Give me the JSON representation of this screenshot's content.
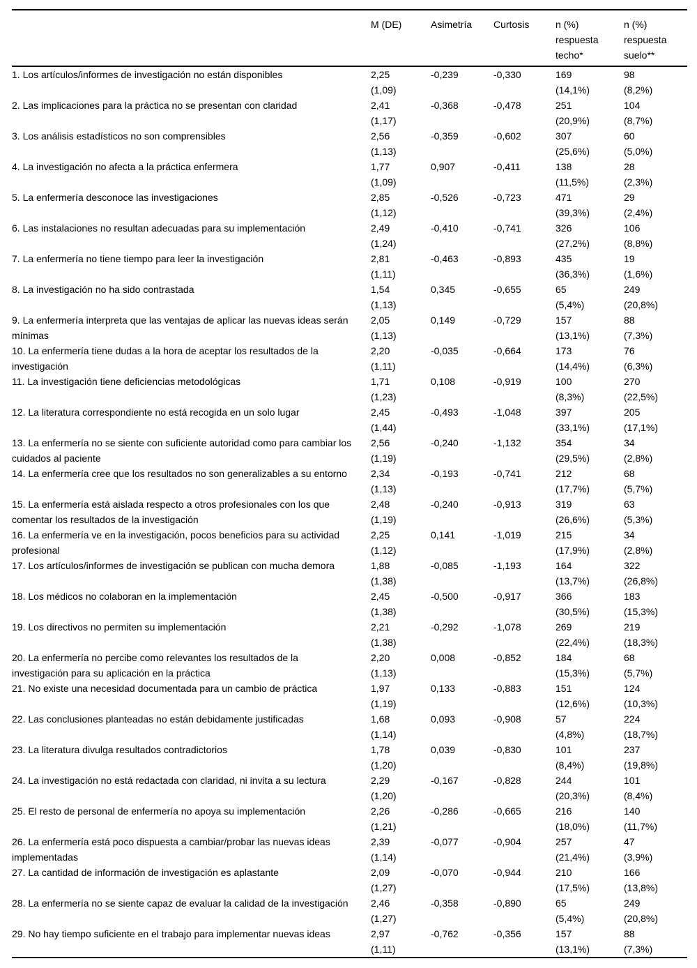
{
  "table": {
    "columns": [
      "",
      "M (DE)",
      "Asimetría",
      "Curtosis",
      "n (%) respuesta techo*",
      "n (%) respuesta suelo**"
    ],
    "rows": [
      {
        "item": "1. Los artículos/informes de investigación no están disponibles",
        "m": "2,25",
        "de": "(1,09)",
        "asimetria": "-0,239",
        "curtosis": "-0,330",
        "techo_n": "169",
        "techo_pct": "(14,1%)",
        "suelo_n": "98",
        "suelo_pct": "(8,2%)"
      },
      {
        "item": "2. Las implicaciones para la práctica no se presentan con claridad",
        "m": "2,41",
        "de": "(1,17)",
        "asimetria": "-0,368",
        "curtosis": "-0,478",
        "techo_n": "251",
        "techo_pct": "(20,9%)",
        "suelo_n": "104",
        "suelo_pct": "(8,7%)"
      },
      {
        "item": "3. Los análisis estadísticos no son comprensibles",
        "m": "2,56",
        "de": "(1,13)",
        "asimetria": "-0,359",
        "curtosis": "-0,602",
        "techo_n": "307",
        "techo_pct": "(25,6%)",
        "suelo_n": "60",
        "suelo_pct": "(5,0%)"
      },
      {
        "item": "4. La investigación no afecta a la práctica enfermera",
        "m": "1,77",
        "de": "(1,09)",
        "asimetria": "0,907",
        "curtosis": "-0,411",
        "techo_n": "138",
        "techo_pct": "(11,5%)",
        "suelo_n": "28",
        "suelo_pct": "(2,3%)"
      },
      {
        "item": "5. La enfermería desconoce las investigaciones",
        "m": "2,85",
        "de": "(1,12)",
        "asimetria": "-0,526",
        "curtosis": "-0,723",
        "techo_n": "471",
        "techo_pct": "(39,3%)",
        "suelo_n": "29",
        "suelo_pct": "(2,4%)"
      },
      {
        "item": "6. Las instalaciones no resultan adecuadas para su implementación",
        "m": "2,49",
        "de": "(1,24)",
        "asimetria": "-0,410",
        "curtosis": "-0,741",
        "techo_n": "326",
        "techo_pct": "(27,2%)",
        "suelo_n": "106",
        "suelo_pct": "(8,8%)"
      },
      {
        "item": "7. La enfermería no tiene tiempo para leer la investigación",
        "m": "2,81",
        "de": "(1,11)",
        "asimetria": "-0,463",
        "curtosis": "-0,893",
        "techo_n": "435",
        "techo_pct": "(36,3%)",
        "suelo_n": "19",
        "suelo_pct": "(1,6%)"
      },
      {
        "item": "8. La investigación no ha sido contrastada",
        "m": "1,54",
        "de": "(1,13)",
        "asimetria": "0,345",
        "curtosis": "-0,655",
        "techo_n": "65",
        "techo_pct": "(5,4%)",
        "suelo_n": "249",
        "suelo_pct": "(20,8%)"
      },
      {
        "item": "9. La enfermería interpreta que las ventajas de aplicar las nuevas ideas serán mínimas",
        "m": "2,05",
        "de": "(1,13)",
        "asimetria": "0,149",
        "curtosis": "-0,729",
        "techo_n": "157",
        "techo_pct": "(13,1%)",
        "suelo_n": "88",
        "suelo_pct": "(7,3%)"
      },
      {
        "item": "10. La enfermería tiene dudas a la hora de aceptar los resultados de la investigación",
        "m": "2,20",
        "de": "(1,11)",
        "asimetria": "-0,035",
        "curtosis": "-0,664",
        "techo_n": "173",
        "techo_pct": "(14,4%)",
        "suelo_n": "76",
        "suelo_pct": "(6,3%)"
      },
      {
        "item": "11. La investigación tiene deficiencias metodológicas",
        "m": "1,71",
        "de": "(1,23)",
        "asimetria": "0,108",
        "curtosis": "-0,919",
        "techo_n": "100",
        "techo_pct": "(8,3%)",
        "suelo_n": "270",
        "suelo_pct": "(22,5%)"
      },
      {
        "item": "12. La literatura correspondiente no está recogida en un solo lugar",
        "m": "2,45",
        "de": "(1,44)",
        "asimetria": "-0,493",
        "curtosis": "-1,048",
        "techo_n": "397",
        "techo_pct": "(33,1%)",
        "suelo_n": "205",
        "suelo_pct": "(17,1%)"
      },
      {
        "item": "13. La enfermería no se siente con suficiente autoridad como para cambiar los cuidados al paciente",
        "m": "2,56",
        "de": "(1,19)",
        "asimetria": "-0,240",
        "curtosis": "-1,132",
        "techo_n": "354",
        "techo_pct": "(29,5%)",
        "suelo_n": "34",
        "suelo_pct": "(2,8%)"
      },
      {
        "item": "14. La enfermería cree que los resultados no son generalizables a su entorno",
        "m": "2,34",
        "de": "(1,13)",
        "asimetria": "-0,193",
        "curtosis": "-0,741",
        "techo_n": "212",
        "techo_pct": "(17,7%)",
        "suelo_n": "68",
        "suelo_pct": "(5,7%)"
      },
      {
        "item": "15. La enfermería está aislada respecto a otros profesionales con los que comentar los resultados de la investigación",
        "m": "2,48",
        "de": "(1,19)",
        "asimetria": "-0,240",
        "curtosis": "-0,913",
        "techo_n": "319",
        "techo_pct": "(26,6%)",
        "suelo_n": "63",
        "suelo_pct": "(5,3%)"
      },
      {
        "item": "16. La enfermería ve en la investigación, pocos beneficios para su actividad profesional",
        "m": "2,25",
        "de": "(1,12)",
        "asimetria": "0,141",
        "curtosis": "-1,019",
        "techo_n": "215",
        "techo_pct": "(17,9%)",
        "suelo_n": "34",
        "suelo_pct": "(2,8%)"
      },
      {
        "item": "17. Los artículos/informes de investigación se publican con mucha demora",
        "m": "1,88",
        "de": "(1,38)",
        "asimetria": "-0,085",
        "curtosis": "-1,193",
        "techo_n": "164",
        "techo_pct": "(13,7%)",
        "suelo_n": "322",
        "suelo_pct": "(26,8%)"
      },
      {
        "item": "18. Los médicos no colaboran en la implementación",
        "m": "2,45",
        "de": "(1,38)",
        "asimetria": "-0,500",
        "curtosis": "-0,917",
        "techo_n": "366",
        "techo_pct": "(30,5%)",
        "suelo_n": "183",
        "suelo_pct": "(15,3%)"
      },
      {
        "item": "19. Los directivos no permiten su implementación",
        "m": "2,21",
        "de": "(1,38)",
        "asimetria": "-0,292",
        "curtosis": "-1,078",
        "techo_n": "269",
        "techo_pct": "(22,4%)",
        "suelo_n": "219",
        "suelo_pct": "(18,3%)"
      },
      {
        "item": "20. La enfermería no percibe como relevantes los resultados de la investigación para su aplicación en la práctica",
        "m": "2,20",
        "de": "(1,13)",
        "asimetria": "0,008",
        "curtosis": "-0,852",
        "techo_n": "184",
        "techo_pct": "(15,3%)",
        "suelo_n": "68",
        "suelo_pct": "(5,7%)"
      },
      {
        "item": "21. No existe una necesidad documentada para un cambio de práctica",
        "m": "1,97",
        "de": "(1,19)",
        "asimetria": "0,133",
        "curtosis": "-0,883",
        "techo_n": "151",
        "techo_pct": "(12,6%)",
        "suelo_n": "124",
        "suelo_pct": "(10,3%)"
      },
      {
        "item": "22. Las conclusiones planteadas no están debidamente justificadas",
        "m": "1,68",
        "de": "(1,14)",
        "asimetria": "0,093",
        "curtosis": "-0,908",
        "techo_n": "57",
        "techo_pct": "(4,8%)",
        "suelo_n": "224",
        "suelo_pct": "(18,7%)"
      },
      {
        "item": "23. La literatura divulga resultados contradictorios",
        "m": "1,78",
        "de": "(1,20)",
        "asimetria": "0,039",
        "curtosis": "-0,830",
        "techo_n": "101",
        "techo_pct": "(8,4%)",
        "suelo_n": "237",
        "suelo_pct": "(19,8%)"
      },
      {
        "item": "24. La investigación no está redactada con claridad, ni invita a su lectura",
        "m": "2,29",
        "de": "(1,20)",
        "asimetria": "-0,167",
        "curtosis": "-0,828",
        "techo_n": "244",
        "techo_pct": "(20,3%)",
        "suelo_n": "101",
        "suelo_pct": "(8,4%)"
      },
      {
        "item": "25. El resto de personal de enfermería no apoya su implementación",
        "m": "2,26",
        "de": "(1,21)",
        "asimetria": "-0,286",
        "curtosis": "-0,665",
        "techo_n": "216",
        "techo_pct": "(18,0%)",
        "suelo_n": "140",
        "suelo_pct": "(11,7%)"
      },
      {
        "item": "26. La enfermería está poco dispuesta a cambiar/probar las nuevas ideas implementadas",
        "m": "2,39",
        "de": "(1,14)",
        "asimetria": "-0,077",
        "curtosis": "-0,904",
        "techo_n": "257",
        "techo_pct": "(21,4%)",
        "suelo_n": "47",
        "suelo_pct": "(3,9%)"
      },
      {
        "item": "27. La cantidad de información de investigación es aplastante",
        "m": "2,09",
        "de": "(1,27)",
        "asimetria": "-0,070",
        "curtosis": "-0,944",
        "techo_n": "210",
        "techo_pct": "(17,5%)",
        "suelo_n": "166",
        "suelo_pct": "(13,8%)"
      },
      {
        "item": "28. La enfermería no se siente capaz de evaluar la calidad de la investigación",
        "m": "2,46",
        "de": "(1,27)",
        "asimetria": "-0,358",
        "curtosis": "-0,890",
        "techo_n": "65",
        "techo_pct": "(5,4%)",
        "suelo_n": "249",
        "suelo_pct": "(20,8%)"
      },
      {
        "item": "29. No hay tiempo suficiente en el trabajo para implementar nuevas ideas",
        "m": "2,97",
        "de": "(1,11)",
        "asimetria": "-0,762",
        "curtosis": "-0,356",
        "techo_n": "157",
        "techo_pct": "(13,1%)",
        "suelo_n": "88",
        "suelo_pct": "(7,3%)"
      }
    ]
  }
}
